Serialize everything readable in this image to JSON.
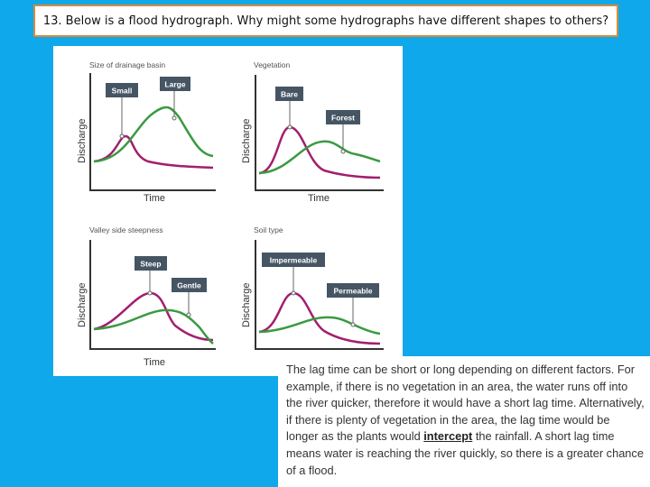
{
  "question": "13. Below is a flood hydrograph. Why might some hydrographs have different shapes to others?",
  "figure": {
    "y_label": "Discharge",
    "x_label": "Time",
    "panels": [
      {
        "title": "Size of drainage basin",
        "tag_purple": "Small",
        "tag_green": "Large"
      },
      {
        "title": "Vegetation",
        "tag_purple": "Bare",
        "tag_green": "Forest"
      },
      {
        "title": "Valley side steepness",
        "tag_purple": "Steep",
        "tag_green": "Gentle"
      },
      {
        "title": "Soil type",
        "tag_purple": "Impermeable",
        "tag_green": "Permeable"
      }
    ],
    "colors": {
      "purple": "#a21f6e",
      "green": "#3a9a42",
      "tag": "#455563",
      "axis": "#333333"
    }
  },
  "text": {
    "part1": "The lag time can be short or long depending on different factors. For example, if there is no vegetation in an area, the water runs off into the river quicker, therefore it would have a short lag time. Alternatively, if there is plenty of vegetation in the area, the lag time would be longer as the plants would ",
    "keyword": "intercept",
    "part2": " the rainfall. A short lag time means water is reaching the river quickly, so there is a greater chance of a flood."
  }
}
